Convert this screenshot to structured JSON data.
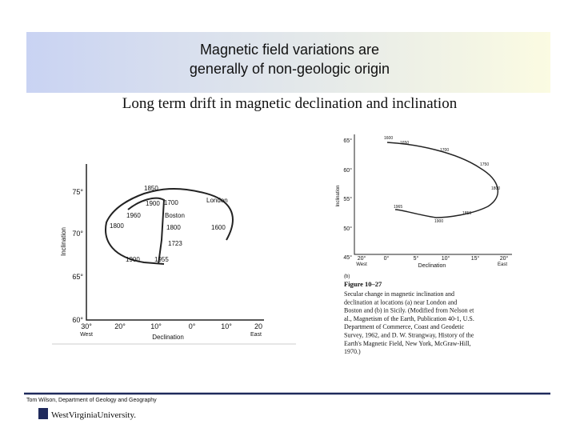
{
  "header": {
    "title_lines": [
      "Magnetic field variations are",
      "generally of non-geologic origin"
    ]
  },
  "subtitle": "Long term drift in magnetic declination and inclination",
  "figure_a": {
    "y_label": "Inclination",
    "x_label": "Declination",
    "y_ticks": [
      "75°",
      "70°",
      "65°",
      "60°"
    ],
    "x_ticks": [
      "30°",
      "20°",
      "10°",
      "0°",
      "10°",
      "20"
    ],
    "x_dirs": [
      "West",
      "East"
    ],
    "labels": [
      "1850",
      "1700",
      "London",
      "1900",
      "1960",
      "Boston",
      "1800",
      "1800",
      "1600",
      "1723",
      "1900",
      "1955"
    ]
  },
  "figure_b": {
    "y_label": "Inclination",
    "x_label": "Declination",
    "y_ticks": [
      "65°",
      "60°",
      "55°",
      "50°",
      "45°"
    ],
    "x_ticks": [
      "20°",
      "0°",
      "5°",
      "10°",
      "15°",
      "20°"
    ],
    "x_dirs": [
      "West",
      "East"
    ],
    "labels": [
      "1600",
      "1650",
      "1700",
      "1750",
      "1800",
      "1850",
      "1900",
      "1965"
    ],
    "panel": "(b)",
    "caption_title": "Figure 10–27",
    "caption_lines": [
      "Secular change in magnetic inclination and",
      "declination at locations (a) near London and",
      "Boston and (b) in Sicily. (Modified from Nelson et",
      "al., Magnetism of the Earth, Publication 40-1, U.S.",
      "Department of Commerce, Coast and Geodetic",
      "Survey, 1962, and D. W. Strangway, History of the",
      "Earth's Magnetic Field, New York, McGraw-Hill,",
      "1970.)"
    ]
  },
  "footer": {
    "credit": "Tom Wilson, Department of Geology and Geography",
    "logo": "WestVirginiaUniversity."
  }
}
